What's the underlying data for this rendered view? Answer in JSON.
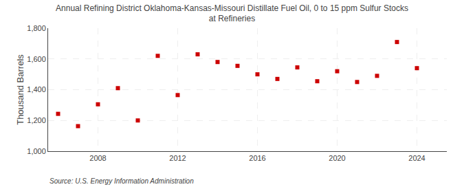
{
  "chart_data": {
    "type": "scatter",
    "title": "Annual Refining District Oklahoma-Kansas-Missouri Distillate Fuel Oil, 0 to 15 ppm Sulfur Stocks\nat Refineries",
    "ylabel": "Thousand Barrels",
    "annotations": [
      "Source: U.S. Energy Information Administration"
    ],
    "x": [
      2006,
      2007,
      2008,
      2009,
      2010,
      2011,
      2012,
      2013,
      2014,
      2015,
      2016,
      2017,
      2018,
      2019,
      2020,
      2021,
      2022,
      2023,
      2024
    ],
    "values": [
      1243,
      1163,
      1305,
      1410,
      1200,
      1620,
      1365,
      1630,
      1580,
      1555,
      1500,
      1470,
      1545,
      1455,
      1520,
      1450,
      1490,
      1710,
      1540
    ],
    "color": "#cc0000",
    "marker": "square",
    "xlim": [
      2005.5,
      2025.5
    ],
    "xticks": [
      2008,
      2012,
      2016,
      2020,
      2024
    ],
    "ylim": [
      1000,
      1800
    ],
    "yticks": [
      {
        "value": 1000,
        "label": "1,000"
      },
      {
        "value": 1200,
        "label": "1,200"
      },
      {
        "value": 1400,
        "label": "1,400"
      },
      {
        "value": 1600,
        "label": "1,600"
      },
      {
        "value": 1800,
        "label": "1,800"
      }
    ],
    "grid": true
  }
}
